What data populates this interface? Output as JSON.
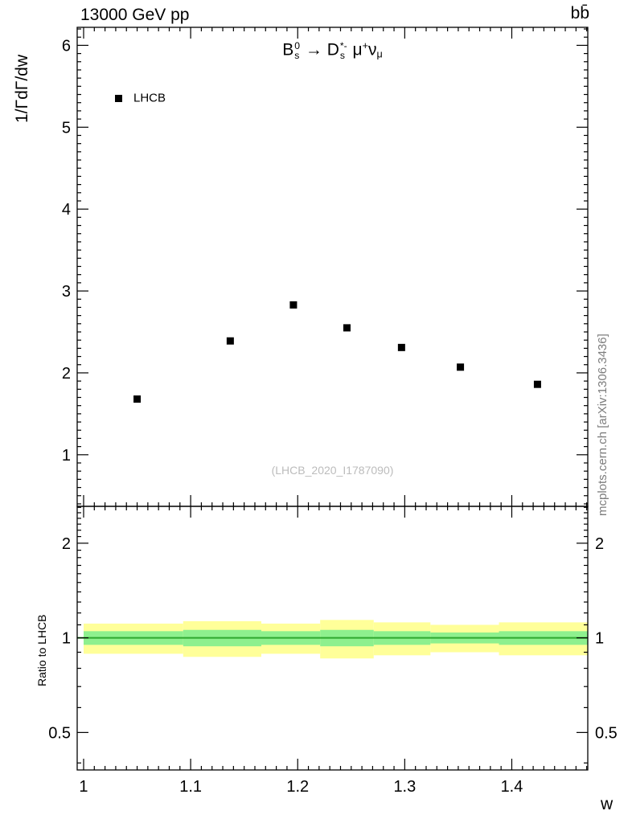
{
  "header": {
    "left": "13000 GeV pp",
    "right": "bb̄"
  },
  "top_panel": {
    "ylabel": "1/ΓdΓ/dw",
    "decay_title_segments": [
      {
        "base": "B",
        "sup": "0",
        "sub": "s"
      },
      {
        "base": " → ",
        "sup": "",
        "sub": ""
      },
      {
        "base": "D",
        "sup": "*-",
        "sub": "s"
      },
      {
        "base": " μ",
        "sup": "+",
        "sub": ""
      },
      {
        "base": "ν",
        "sup": "",
        "sub": "μ"
      }
    ],
    "legend": [
      {
        "label": "LHCB",
        "marker": "black-filled-square"
      }
    ],
    "watermark": "(LHCB_2020_I1787090)"
  },
  "bottom_panel": {
    "ylabel": "Ratio to LHCB"
  },
  "xlabel": "w",
  "side_text": "mcplots.cern.ch [arXiv:1306.3436]",
  "colors": {
    "band_outer": "#ffff99",
    "band_inner": "#8ef08e",
    "ratio_line": "#2fa82f",
    "marker": "#000000",
    "frame": "#000000"
  },
  "chart_data": [
    {
      "type": "scatter",
      "panel": "main",
      "title": "B0s → D*-s mu+ nu_mu",
      "xlabel": "w",
      "ylabel": "1/ΓdΓ/dw",
      "xlim": [
        0.994,
        1.471
      ],
      "ylim": [
        0.37,
        6.22
      ],
      "xticks": [
        1,
        1.1,
        1.2,
        1.3,
        1.4
      ],
      "xtick_labels": [
        "1",
        "1.1",
        "1.2",
        "1.3",
        "1.4"
      ],
      "yticks": [
        1,
        2,
        3,
        4,
        5,
        6
      ],
      "ytick_labels": [
        "1",
        "2",
        "3",
        "4",
        "5",
        "6"
      ],
      "grid": false,
      "legend_position": "top-left",
      "series": [
        {
          "name": "LHCB",
          "marker": "filled-square",
          "color": "#000000",
          "x": [
            1.05,
            1.137,
            1.196,
            1.246,
            1.297,
            1.352,
            1.424
          ],
          "y": [
            1.68,
            2.39,
            2.83,
            2.55,
            2.31,
            2.07,
            1.86
          ]
        }
      ]
    },
    {
      "type": "band",
      "panel": "ratio",
      "ylabel": "Ratio to LHCB",
      "yscale": "log",
      "xlim": [
        0.994,
        1.471
      ],
      "ylim": [
        0.38,
        2.62
      ],
      "yticks": [
        0.5,
        1,
        2
      ],
      "ytick_labels": [
        "0.5",
        "1",
        "2"
      ],
      "reference_line": 1,
      "bin_edges": [
        1.0,
        1.093,
        1.166,
        1.221,
        1.271,
        1.324,
        1.388,
        1.471
      ],
      "outer_band_lo": [
        0.89,
        0.87,
        0.89,
        0.86,
        0.88,
        0.9,
        0.88
      ],
      "outer_band_hi": [
        1.11,
        1.13,
        1.11,
        1.14,
        1.12,
        1.1,
        1.12
      ],
      "inner_band_lo": [
        0.95,
        0.94,
        0.95,
        0.94,
        0.95,
        0.96,
        0.95
      ],
      "inner_band_hi": [
        1.05,
        1.06,
        1.05,
        1.06,
        1.05,
        1.04,
        1.05
      ]
    }
  ]
}
